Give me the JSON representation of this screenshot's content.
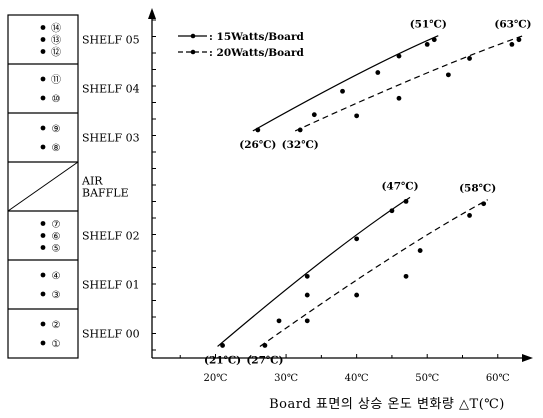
{
  "legend": {
    "solid_label": ": 15Watts/Board",
    "dashed_label": ": 20Watts/Board"
  },
  "xlabel": "Board 표면의 상승 온도 변화량 △T(℃)",
  "shelves": [
    {
      "label": "SHELF 05",
      "slots": [
        "⑭",
        "⑬",
        "⑫"
      ]
    },
    {
      "label": "SHELF 04",
      "slots": [
        "⑪",
        "⑩"
      ]
    },
    {
      "label": "SHELF 03",
      "slots": [
        "⑨",
        "⑧"
      ]
    },
    {
      "label": "AIR\nBAFFLE",
      "slots": []
    },
    {
      "label": "SHELF 02",
      "slots": [
        "⑦",
        "⑥",
        "⑤"
      ]
    },
    {
      "label": "SHELF 01",
      "slots": [
        "④",
        "③"
      ]
    },
    {
      "label": "SHELF 00",
      "slots": [
        "②",
        "①"
      ]
    }
  ],
  "chart_data": {
    "type": "scatter",
    "x_ticks": [
      "20℃",
      "30℃",
      "40℃",
      "50℃",
      "60℃"
    ],
    "x_tick_values": [
      20,
      30,
      40,
      50,
      60
    ],
    "xlim": [
      11,
      64
    ],
    "ylim": [
      0,
      14
    ],
    "series": [
      {
        "name": "15Watts/Board",
        "style": "solid",
        "groups": [
          {
            "points": [
              [
                26,
                9.65
              ],
              [
                34,
                10.3
              ],
              [
                38,
                11.3
              ],
              [
                43,
                12.1
              ],
              [
                46,
                12.8
              ],
              [
                50,
                13.3
              ],
              [
                51,
                13.5
              ]
            ]
          },
          {
            "points": [
              [
                21,
                0.45
              ],
              [
                29,
                1.5
              ],
              [
                33,
                2.6
              ],
              [
                33,
                3.4
              ],
              [
                40,
                5.0
              ],
              [
                45,
                6.2
              ],
              [
                47,
                6.6
              ]
            ]
          }
        ],
        "annotations": [
          {
            "text": "(26℃)",
            "x": 26,
            "y": 9.65
          },
          {
            "text": "(51℃)",
            "x": 51,
            "y": 13.5
          },
          {
            "text": "(21℃)",
            "x": 21,
            "y": 0.45
          },
          {
            "text": "(47℃)",
            "x": 47,
            "y": 6.6
          }
        ]
      },
      {
        "name": "20Watts/Board",
        "style": "dashed",
        "groups": [
          {
            "points": [
              [
                32,
                9.65
              ],
              [
                40,
                10.25
              ],
              [
                46,
                11.0
              ],
              [
                53,
                12.0
              ],
              [
                56,
                12.7
              ],
              [
                62,
                13.3
              ],
              [
                63,
                13.5
              ]
            ]
          },
          {
            "points": [
              [
                27,
                0.45
              ],
              [
                33,
                1.5
              ],
              [
                40,
                2.6
              ],
              [
                47,
                3.4
              ],
              [
                49,
                4.5
              ],
              [
                56,
                6.0
              ],
              [
                58,
                6.5
              ]
            ]
          }
        ],
        "annotations": [
          {
            "text": "(32℃)",
            "x": 32,
            "y": 9.65
          },
          {
            "text": "(63℃)",
            "x": 63,
            "y": 13.5
          },
          {
            "text": "(27℃)",
            "x": 27,
            "y": 0.45
          },
          {
            "text": "(58℃)",
            "x": 58,
            "y": 6.5
          }
        ]
      }
    ]
  }
}
